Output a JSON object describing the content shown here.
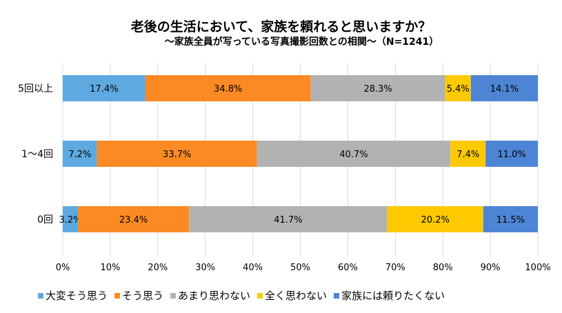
{
  "chart_data": {
    "type": "bar",
    "orientation": "horizontal",
    "stacked": "percent",
    "title": "老後の生活において、家族を頼れると思いますか？",
    "subtitle": "～家族全員が写っている写真撮影回数との相関～（N=1241）",
    "categories": [
      "5回以上",
      "1～4回",
      "0回"
    ],
    "series": [
      {
        "name": "大変そう思う",
        "color": "#5DA9E0",
        "values": [
          17.4,
          7.2,
          3.2
        ]
      },
      {
        "name": "そう思う",
        "color": "#FB8A24",
        "values": [
          34.8,
          33.7,
          23.4
        ]
      },
      {
        "name": "あまり思わない",
        "color": "#B2B2B2",
        "values": [
          28.3,
          40.7,
          41.7
        ]
      },
      {
        "name": "全く思わない",
        "color": "#FDC901",
        "values": [
          5.4,
          7.4,
          20.2
        ]
      },
      {
        "name": "家族には頼りたくない",
        "color": "#4D84D4",
        "values": [
          14.1,
          11.0,
          11.5
        ]
      }
    ],
    "xlim": [
      0,
      100
    ],
    "xticks": [
      "0%",
      "10%",
      "20%",
      "30%",
      "40%",
      "50%",
      "60%",
      "70%",
      "80%",
      "90%",
      "100%"
    ],
    "xlabel": "",
    "ylabel": "",
    "grid": "vertical",
    "legend_position": "bottom"
  }
}
